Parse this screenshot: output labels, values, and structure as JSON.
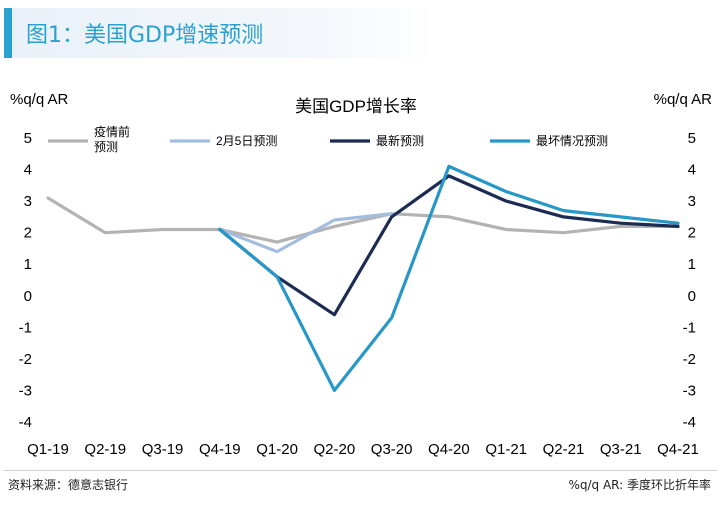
{
  "figure_title": "图1：美国GDP增速预测",
  "chart_data": {
    "type": "line",
    "title": "美国GDP增长率",
    "ylabel_left": "%q/q AR",
    "ylabel_right": "%q/q AR",
    "xlabel": "",
    "ylim": [
      -4,
      5
    ],
    "yticks": [
      "5",
      "4",
      "3",
      "2",
      "1",
      "0",
      "-1",
      "-2",
      "-3",
      "-4"
    ],
    "categories": [
      "Q1-19",
      "Q2-19",
      "Q3-19",
      "Q4-19",
      "Q1-20",
      "Q2-20",
      "Q3-20",
      "Q4-20",
      "Q1-21",
      "Q2-21",
      "Q3-21",
      "Q4-21"
    ],
    "legend": [
      "疫情前\n预测",
      "2月5日预测",
      "最新预测",
      "最坏情况预测"
    ],
    "series": [
      {
        "name": "疫情前预测",
        "color": "#b3b3b3",
        "values": [
          3.1,
          2.0,
          2.1,
          2.1,
          1.7,
          2.2,
          2.6,
          2.5,
          2.1,
          2.0,
          2.2,
          2.2
        ]
      },
      {
        "name": "2月5日预测",
        "color": "#a3bde0",
        "values": [
          null,
          null,
          null,
          2.1,
          1.4,
          2.4,
          2.6,
          null,
          null,
          null,
          null,
          null
        ]
      },
      {
        "name": "最新预测",
        "color": "#1c2b52",
        "values": [
          null,
          null,
          null,
          2.1,
          0.6,
          -0.6,
          2.5,
          3.8,
          3.0,
          2.5,
          2.3,
          2.2
        ]
      },
      {
        "name": "最坏情况预测",
        "color": "#2797c7",
        "values": [
          null,
          null,
          null,
          2.1,
          0.6,
          -3.0,
          -0.7,
          4.1,
          3.3,
          2.7,
          2.5,
          2.3
        ]
      }
    ]
  },
  "footer": {
    "source": "资料来源：德意志银行",
    "note": "%q/q AR: 季度环比折年率"
  }
}
